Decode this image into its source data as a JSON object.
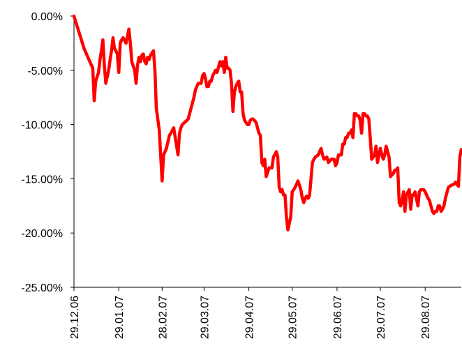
{
  "chart_data": {
    "type": "line",
    "title": "",
    "xlabel": "",
    "ylabel": "",
    "ylim": [
      -25,
      0
    ],
    "y_ticks": [
      0,
      -5,
      -10,
      -15,
      -20,
      -25
    ],
    "y_tick_labels": [
      "0.00%",
      "-5.00%",
      "-10.00%",
      "-15.00%",
      "-20.00%",
      "-25.00%"
    ],
    "x_ticks": [
      "2006-12-29",
      "2007-01-29",
      "2007-02-28",
      "2007-03-29",
      "2007-04-29",
      "2007-05-29",
      "2007-06-29",
      "2007-07-29",
      "2007-08-29"
    ],
    "x_tick_labels": [
      "29.12.06",
      "29.01.07",
      "28.02.07",
      "29.03.07",
      "29.04.07",
      "29.05.07",
      "29.06.07",
      "29.07.07",
      "29.08.07"
    ],
    "xlim": [
      "2006-12-29",
      "2007-09-23"
    ],
    "grid": false,
    "legend": "none",
    "series": [
      {
        "color": "#ff0000",
        "x": [
          "2006-12-29",
          "2007-01-05",
          "2007-01-11",
          "2007-01-12",
          "2007-01-13",
          "2007-01-15",
          "2007-01-16",
          "2007-01-17",
          "2007-01-18",
          "2007-01-19",
          "2007-01-20",
          "2007-01-22",
          "2007-01-23",
          "2007-01-24",
          "2007-01-25",
          "2007-01-26",
          "2007-01-27",
          "2007-01-28",
          "2007-01-29",
          "2007-01-30",
          "2007-01-31",
          "2007-02-01",
          "2007-02-03",
          "2007-02-05",
          "2007-02-06",
          "2007-02-07",
          "2007-02-09",
          "2007-02-10",
          "2007-02-11",
          "2007-02-12",
          "2007-02-13",
          "2007-02-14",
          "2007-02-15",
          "2007-02-16",
          "2007-02-17",
          "2007-02-18",
          "2007-02-19",
          "2007-02-20",
          "2007-02-22",
          "2007-02-23",
          "2007-02-24",
          "2007-02-26",
          "2007-02-28",
          "2007-03-01",
          "2007-03-03",
          "2007-03-05",
          "2007-03-06",
          "2007-03-08",
          "2007-03-11",
          "2007-03-12",
          "2007-03-13",
          "2007-03-14",
          "2007-03-18",
          "2007-03-22",
          "2007-03-23",
          "2007-03-24",
          "2007-03-25",
          "2007-03-27",
          "2007-03-28",
          "2007-03-29",
          "2007-03-30",
          "2007-03-31",
          "2007-04-01",
          "2007-04-02",
          "2007-04-03",
          "2007-04-04",
          "2007-04-06",
          "2007-04-07",
          "2007-04-09",
          "2007-04-10",
          "2007-04-11",
          "2007-04-12",
          "2007-04-13",
          "2007-04-14",
          "2007-04-15",
          "2007-04-16",
          "2007-04-17",
          "2007-04-18",
          "2007-04-19",
          "2007-04-20",
          "2007-04-21",
          "2007-04-22",
          "2007-04-23",
          "2007-04-24",
          "2007-04-25",
          "2007-04-26",
          "2007-04-27",
          "2007-04-28",
          "2007-04-29",
          "2007-04-30",
          "2007-05-01",
          "2007-05-02",
          "2007-05-04",
          "2007-05-06",
          "2007-05-07",
          "2007-05-08",
          "2007-05-09",
          "2007-05-10",
          "2007-05-11",
          "2007-05-13",
          "2007-05-15",
          "2007-05-16",
          "2007-05-18",
          "2007-05-19",
          "2007-05-20",
          "2007-05-21",
          "2007-05-22",
          "2007-05-23",
          "2007-05-24",
          "2007-05-25",
          "2007-05-26",
          "2007-05-28",
          "2007-05-29",
          "2007-05-30",
          "2007-05-31",
          "2007-06-01",
          "2007-06-02",
          "2007-06-04",
          "2007-06-05",
          "2007-06-06",
          "2007-06-07",
          "2007-06-08",
          "2007-06-09",
          "2007-06-10",
          "2007-06-12",
          "2007-06-13",
          "2007-06-14",
          "2007-06-16",
          "2007-06-18",
          "2007-06-19",
          "2007-06-20",
          "2007-06-22",
          "2007-06-23",
          "2007-06-25",
          "2007-06-27",
          "2007-06-28",
          "2007-06-29",
          "2007-06-30",
          "2007-07-01",
          "2007-07-02",
          "2007-07-03",
          "2007-07-04",
          "2007-07-05",
          "2007-07-06",
          "2007-07-07",
          "2007-07-08",
          "2007-07-09",
          "2007-07-10",
          "2007-07-11",
          "2007-07-12",
          "2007-07-13",
          "2007-07-14",
          "2007-07-15",
          "2007-07-16",
          "2007-07-17",
          "2007-07-18",
          "2007-07-19",
          "2007-07-20",
          "2007-07-21",
          "2007-07-22",
          "2007-07-23",
          "2007-07-24",
          "2007-07-25",
          "2007-07-26",
          "2007-07-27",
          "2007-07-29",
          "2007-07-30",
          "2007-07-31",
          "2007-08-01",
          "2007-08-02",
          "2007-08-03",
          "2007-08-04",
          "2007-08-05",
          "2007-08-07",
          "2007-08-08",
          "2007-08-09",
          "2007-08-10",
          "2007-08-11",
          "2007-08-12",
          "2007-08-13",
          "2007-08-14",
          "2007-08-15",
          "2007-08-16",
          "2007-08-18",
          "2007-08-19",
          "2007-08-20",
          "2007-08-21",
          "2007-08-22",
          "2007-08-24",
          "2007-08-25",
          "2007-08-26",
          "2007-08-27",
          "2007-08-28",
          "2007-08-29",
          "2007-08-30",
          "2007-08-31",
          "2007-09-01",
          "2007-09-02",
          "2007-09-03",
          "2007-09-04",
          "2007-09-05",
          "2007-09-06",
          "2007-09-07",
          "2007-09-08",
          "2007-09-09",
          "2007-09-10",
          "2007-09-11",
          "2007-09-12",
          "2007-09-14",
          "2007-09-16",
          "2007-09-18",
          "2007-09-19",
          "2007-09-21",
          "2007-09-22",
          "2007-09-23"
        ],
        "values": [
          0,
          -3,
          -4.8,
          -7.8,
          -6.0,
          -5.2,
          -4.0,
          -3.2,
          -2.2,
          -4.5,
          -6.2,
          -5.0,
          -4.0,
          -3.2,
          -2.0,
          -3.0,
          -3.2,
          -3.5,
          -5.2,
          -2.5,
          -2.2,
          -2.0,
          -2.5,
          -1.2,
          -2.5,
          -4.2,
          -5.0,
          -6.2,
          -4.5,
          -3.8,
          -4.2,
          -3.6,
          -3.5,
          -4.2,
          -4.4,
          -3.8,
          -4.0,
          -3.6,
          -3.2,
          -5.0,
          -8.5,
          -10.5,
          -15.2,
          -12.8,
          -12.2,
          -11.0,
          -10.8,
          -10.3,
          -12.8,
          -10.8,
          -10.3,
          -10.0,
          -9.5,
          -7.5,
          -6.8,
          -6.5,
          -6.2,
          -6.2,
          -5.5,
          -5.3,
          -5.8,
          -6.5,
          -6.5,
          -6.0,
          -6.0,
          -5.5,
          -5.0,
          -5.2,
          -4.2,
          -4.6,
          -4.2,
          -5.2,
          -3.8,
          -4.8,
          -4.8,
          -5.0,
          -6.2,
          -8.8,
          -7.0,
          -6.5,
          -6.2,
          -6.0,
          -7.0,
          -7.0,
          -9.0,
          -9.6,
          -9.8,
          -10.0,
          -10.0,
          -9.6,
          -9.5,
          -9.5,
          -9.8,
          -10.8,
          -11.0,
          -13.5,
          -13.8,
          -13.2,
          -14.8,
          -14.0,
          -14.0,
          -13.0,
          -12.5,
          -13.0,
          -15.8,
          -16.2,
          -16.0,
          -16.5,
          -16.5,
          -18.5,
          -19.7,
          -18.5,
          -16.2,
          -16.0,
          -15.8,
          -15.5,
          -15.2,
          -16.0,
          -16.8,
          -17.2,
          -16.8,
          -16.6,
          -16.8,
          -16.5,
          -13.5,
          -13.2,
          -13.0,
          -12.8,
          -12.2,
          -12.8,
          -13.2,
          -13.0,
          -13.5,
          -13.2,
          -13.2,
          -13.8,
          -13.5,
          -12.8,
          -12.8,
          -12.8,
          -11.8,
          -11.8,
          -11.2,
          -11.2,
          -10.8,
          -10.8,
          -10.5,
          -11.2,
          -9.0,
          -9.0,
          -9.2,
          -9.2,
          -9.6,
          -10.8,
          -9.0,
          -9.0,
          -9.2,
          -9.2,
          -9.5,
          -11.2,
          -13.2,
          -13.0,
          -12.8,
          -12.0,
          -13.5,
          -12.2,
          -12.8,
          -13.2,
          -12.8,
          -12.0,
          -12.5,
          -13.0,
          -14.8,
          -14.5,
          -14.2,
          -14.2,
          -14.0,
          -17.2,
          -17.5,
          -17.0,
          -16.2,
          -18.0,
          -16.5,
          -16.0,
          -17.8,
          -16.5,
          -16.5,
          -16.2,
          -17.5,
          -16.2,
          -16.0,
          -16.0,
          -16.0,
          -16.2,
          -16.5,
          -16.8,
          -17.0,
          -17.5,
          -18.0,
          -18.2,
          -18.0,
          -18.0,
          -17.5,
          -17.5,
          -18.0,
          -17.8,
          -17.5,
          -16.8,
          -15.8,
          -15.6,
          -15.5,
          -15.3,
          -15.7,
          -13.0,
          -12.3
        ]
      }
    ]
  }
}
